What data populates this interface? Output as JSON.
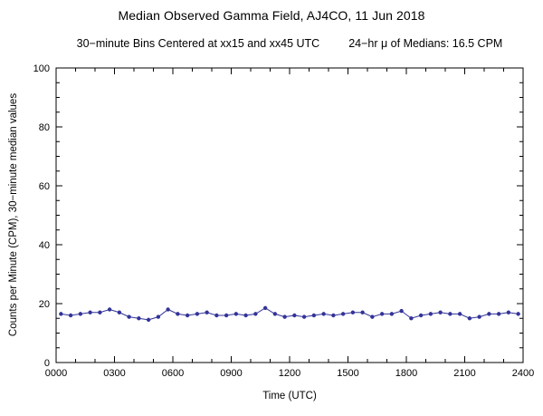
{
  "chart": {
    "title": "Median Observed Gamma Field, AJ4CO, 11 Jun 2018",
    "subtitle_left": "30−minute Bins Centered at xx15 and xx45 UTC",
    "subtitle_right": "24−hr μ of Medians: 16.5 CPM",
    "mean_of_medians_cpm": 16.5
  },
  "chart_data": {
    "type": "line",
    "title": "Median Observed Gamma Field, AJ4CO, 11 Jun 2018",
    "xlabel": "Time (UTC)",
    "ylabel": "Counts per Minute (CPM), 30−minute median values",
    "xlim": [
      0,
      24
    ],
    "ylim": [
      0,
      100
    ],
    "grid": false,
    "legend": "none",
    "series_color": "#333399",
    "marker": "filled-circle",
    "xticks": {
      "values": [
        0,
        3,
        6,
        9,
        12,
        15,
        18,
        21,
        24
      ],
      "labels": [
        "0000",
        "0300",
        "0600",
        "0900",
        "1200",
        "1500",
        "1800",
        "2100",
        "2400"
      ]
    },
    "yticks": {
      "values": [
        0,
        20,
        40,
        60,
        80,
        100
      ],
      "labels": [
        "0",
        "20",
        "40",
        "60",
        "80",
        "100"
      ]
    },
    "x_minor_step_hours": 1,
    "y_minor_step": 5,
    "times_utc": [
      "0015",
      "0045",
      "0115",
      "0145",
      "0215",
      "0245",
      "0315",
      "0345",
      "0415",
      "0445",
      "0515",
      "0545",
      "0615",
      "0645",
      "0715",
      "0745",
      "0815",
      "0845",
      "0915",
      "0945",
      "1015",
      "1045",
      "1115",
      "1145",
      "1215",
      "1245",
      "1315",
      "1345",
      "1415",
      "1445",
      "1515",
      "1545",
      "1615",
      "1645",
      "1715",
      "1745",
      "1815",
      "1845",
      "1915",
      "1945",
      "2015",
      "2045",
      "2115",
      "2145",
      "2215",
      "2245",
      "2315",
      "2345"
    ],
    "x": [
      0.25,
      0.75,
      1.25,
      1.75,
      2.25,
      2.75,
      3.25,
      3.75,
      4.25,
      4.75,
      5.25,
      5.75,
      6.25,
      6.75,
      7.25,
      7.75,
      8.25,
      8.75,
      9.25,
      9.75,
      10.25,
      10.75,
      11.25,
      11.75,
      12.25,
      12.75,
      13.25,
      13.75,
      14.25,
      14.75,
      15.25,
      15.75,
      16.25,
      16.75,
      17.25,
      17.75,
      18.25,
      18.75,
      19.25,
      19.75,
      20.25,
      20.75,
      21.25,
      21.75,
      22.25,
      22.75,
      23.25,
      23.75
    ],
    "values": [
      16.5,
      16,
      16.5,
      17,
      17,
      18,
      17,
      15.5,
      15,
      14.5,
      15.5,
      18,
      16.5,
      16,
      16.5,
      17,
      16,
      16,
      16.5,
      16,
      16.5,
      18.5,
      16.5,
      15.5,
      16,
      15.5,
      16,
      16.5,
      16,
      16.5,
      17,
      17,
      15.5,
      16.5,
      16.5,
      17.5,
      15,
      16,
      16.5,
      17,
      16.5,
      16.5,
      15,
      15.5,
      16.5,
      16.5,
      17,
      16.5
    ]
  }
}
